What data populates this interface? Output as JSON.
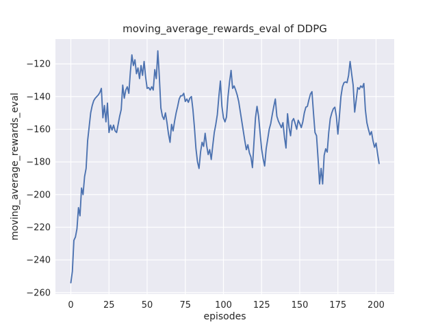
{
  "figure": {
    "background": "#ffffff",
    "plot_background": "#eaeaf2",
    "grid_color": "#ffffff",
    "line_color": "#4c72b0",
    "text_color": "#262626"
  },
  "chart_data": {
    "type": "line",
    "title": "moving_average_rewards_eval of DDPG",
    "xlabel": "episodes",
    "ylabel": "moving_average_rewards_eval",
    "grid": true,
    "legend_position": "none",
    "xlim": [
      -10.1,
      211.9
    ],
    "ylim": [
      -260.9,
      -104.8
    ],
    "x_ticks": [
      0,
      25,
      50,
      75,
      100,
      125,
      150,
      175,
      200
    ],
    "x_tick_labels": [
      "0",
      "25",
      "50",
      "75",
      "100",
      "125",
      "150",
      "175",
      "200"
    ],
    "y_ticks": [
      -120,
      -140,
      -160,
      -180,
      -200,
      -220,
      -240,
      -260
    ],
    "y_tick_labels": [
      "−120",
      "−140",
      "−160",
      "−180",
      "−200",
      "−220",
      "−240",
      "−260"
    ],
    "series_name": "moving_average_rewards_eval",
    "x_start": 0,
    "x_step": 1,
    "values": [
      -254,
      -247,
      -228,
      -226,
      -221,
      -208,
      -213,
      -196,
      -200,
      -189,
      -184,
      -167,
      -158.5,
      -150,
      -145.5,
      -142.5,
      -141,
      -140,
      -139,
      -137.5,
      -135,
      -153,
      -145.5,
      -155.5,
      -144,
      -162,
      -157.5,
      -160.5,
      -157.5,
      -161,
      -162,
      -157,
      -152,
      -148,
      -133,
      -141,
      -136,
      -134,
      -138,
      -125,
      -114.5,
      -121,
      -117.5,
      -126,
      -122.5,
      -129,
      -121,
      -127,
      -118.5,
      -128,
      -135,
      -134.5,
      -136,
      -134,
      -136,
      -123.5,
      -129,
      -112,
      -128,
      -147,
      -152,
      -154,
      -150,
      -156,
      -163,
      -168,
      -157,
      -161,
      -155,
      -150,
      -146,
      -141.5,
      -139.5,
      -139.5,
      -138,
      -143,
      -141.5,
      -143.5,
      -141,
      -140,
      -148,
      -159,
      -172,
      -180,
      -184,
      -174,
      -168,
      -170.5,
      -162.5,
      -170,
      -175.5,
      -172.5,
      -178.5,
      -170,
      -162,
      -157,
      -151,
      -140,
      -130.5,
      -146,
      -153,
      -155.5,
      -152.5,
      -140,
      -131,
      -124,
      -135,
      -133.5,
      -136,
      -139,
      -143,
      -149,
      -155,
      -161,
      -167,
      -172.5,
      -169.5,
      -174.5,
      -177,
      -183.5,
      -168,
      -153,
      -146,
      -152,
      -162,
      -172,
      -178,
      -182.5,
      -172,
      -166,
      -160,
      -156.5,
      -151,
      -146,
      -141.5,
      -152,
      -155,
      -157,
      -159,
      -156,
      -165,
      -171.5,
      -150.5,
      -159,
      -164,
      -155,
      -153.5,
      -156.5,
      -160,
      -154.5,
      -156.5,
      -159,
      -155.5,
      -150,
      -146.5,
      -146,
      -142,
      -138.5,
      -137,
      -150,
      -162,
      -164,
      -178,
      -193.5,
      -184,
      -193.5,
      -176,
      -172,
      -174,
      -162,
      -153.5,
      -150,
      -147.5,
      -146.5,
      -152,
      -163,
      -152,
      -140,
      -134,
      -131.5,
      -131,
      -131.5,
      -127,
      -118.5,
      -126,
      -133,
      -149.5,
      -142,
      -134.5,
      -135.5,
      -133.5,
      -134.5,
      -132,
      -148,
      -156,
      -160,
      -163.5,
      -161.5,
      -167,
      -171,
      -168.5,
      -175,
      -181
    ]
  }
}
